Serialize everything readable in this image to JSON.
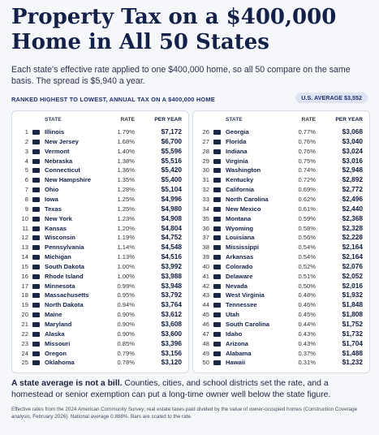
{
  "header": {
    "title": "Property Tax on a $400,000 Home in All 50 States",
    "subtitle": "Each state's effective rate applied to one $400,000 home, so all 50 compare on the same basis. The spread is $5,940 a year."
  },
  "table": {
    "label": "RANKED HIGHEST TO LOWEST, ANNUAL TAX ON A $400,000 HOME",
    "badge": "U.S. AVERAGE $3,552",
    "columns": [
      "STATE",
      "RATE",
      "PER YEAR"
    ],
    "left_rows": [
      [
        "1",
        "Illinois",
        "1.79%",
        "$7,172"
      ],
      [
        "2",
        "New Jersey",
        "1.68%",
        "$6,700"
      ],
      [
        "3",
        "Vermont",
        "1.40%",
        "$5,596"
      ],
      [
        "4",
        "Nebraska",
        "1.38%",
        "$5,516"
      ],
      [
        "5",
        "Connecticut",
        "1.36%",
        "$5,420"
      ],
      [
        "6",
        "New Hampshire",
        "1.35%",
        "$5,400"
      ],
      [
        "7",
        "Ohio",
        "1.28%",
        "$5,104"
      ],
      [
        "8",
        "Iowa",
        "1.25%",
        "$4,996"
      ],
      [
        "9",
        "Texas",
        "1.25%",
        "$4,980"
      ],
      [
        "10",
        "New York",
        "1.23%",
        "$4,908"
      ],
      [
        "11",
        "Kansas",
        "1.20%",
        "$4,804"
      ],
      [
        "12",
        "Wisconsin",
        "1.19%",
        "$4,752"
      ],
      [
        "13",
        "Pennsylvania",
        "1.14%",
        "$4,548"
      ],
      [
        "14",
        "Michigan",
        "1.13%",
        "$4,516"
      ],
      [
        "15",
        "South Dakota",
        "1.00%",
        "$3,992"
      ],
      [
        "16",
        "Rhode Island",
        "1.00%",
        "$3,988"
      ],
      [
        "17",
        "Minnesota",
        "0.99%",
        "$3,948"
      ],
      [
        "18",
        "Massachusetts",
        "0.95%",
        "$3,792"
      ],
      [
        "19",
        "North Dakota",
        "0.94%",
        "$3,764"
      ],
      [
        "20",
        "Maine",
        "0.90%",
        "$3,612"
      ],
      [
        "21",
        "Maryland",
        "0.90%",
        "$3,608"
      ],
      [
        "22",
        "Alaska",
        "0.90%",
        "$3,600"
      ],
      [
        "23",
        "Missouri",
        "0.85%",
        "$3,396"
      ],
      [
        "24",
        "Oregon",
        "0.79%",
        "$3,156"
      ],
      [
        "25",
        "Oklahoma",
        "0.78%",
        "$3,120"
      ]
    ],
    "right_rows": [
      [
        "26",
        "Georgia",
        "0.77%",
        "$3,068"
      ],
      [
        "27",
        "Florida",
        "0.76%",
        "$3,040"
      ],
      [
        "28",
        "Indiana",
        "0.76%",
        "$3,024"
      ],
      [
        "29",
        "Virginia",
        "0.75%",
        "$3,016"
      ],
      [
        "30",
        "Washington",
        "0.74%",
        "$2,948"
      ],
      [
        "31",
        "Kentucky",
        "0.72%",
        "$2,892"
      ],
      [
        "32",
        "California",
        "0.69%",
        "$2,772"
      ],
      [
        "33",
        "North Carolina",
        "0.62%",
        "$2,496"
      ],
      [
        "34",
        "New Mexico",
        "0.61%",
        "$2,440"
      ],
      [
        "35",
        "Montana",
        "0.59%",
        "$2,368"
      ],
      [
        "36",
        "Wyoming",
        "0.58%",
        "$2,328"
      ],
      [
        "37",
        "Louisiana",
        "0.56%",
        "$2,228"
      ],
      [
        "38",
        "Mississippi",
        "0.54%",
        "$2,164"
      ],
      [
        "39",
        "Arkansas",
        "0.54%",
        "$2,164"
      ],
      [
        "40",
        "Colorado",
        "0.52%",
        "$2,076"
      ],
      [
        "41",
        "Delaware",
        "0.51%",
        "$2,052"
      ],
      [
        "42",
        "Nevada",
        "0.50%",
        "$2,016"
      ],
      [
        "43",
        "West Virginia",
        "0.48%",
        "$1,932"
      ],
      [
        "44",
        "Tennessee",
        "0.46%",
        "$1,848"
      ],
      [
        "45",
        "Utah",
        "0.45%",
        "$1,808"
      ],
      [
        "46",
        "South Carolina",
        "0.44%",
        "$1,752"
      ],
      [
        "47",
        "Idaho",
        "0.43%",
        "$1,732"
      ],
      [
        "48",
        "Arizona",
        "0.43%",
        "$1,704"
      ],
      [
        "49",
        "Alabama",
        "0.37%",
        "$1,488"
      ],
      [
        "50",
        "Hawaii",
        "0.31%",
        "$1,232"
      ]
    ]
  },
  "footer": {
    "lead": "A state average is not a bill.",
    "body": "Counties, cities, and school districts set the rate, and a homestead or senior exemption can put a long-time owner well below the state figure.",
    "note": "Effective rates from the 2024 American Community Survey; real estate taxes paid divided by the value of owner-occupied homes (Construction Coverage analysis, February 2026). National average 0.888%. Bars are scaled to the rate."
  }
}
